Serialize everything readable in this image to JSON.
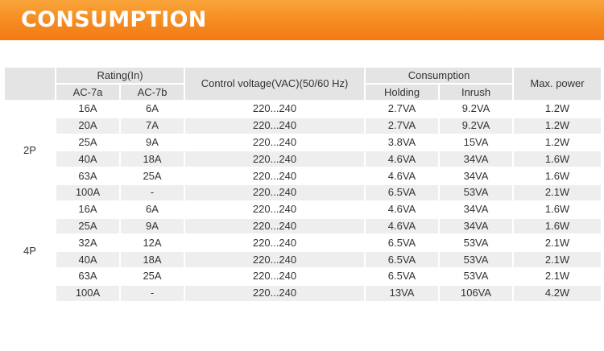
{
  "banner": {
    "title": "CONSUMPTION"
  },
  "headers": {
    "rating": "Rating(In)",
    "ac7a": "AC-7a",
    "ac7b": "AC-7b",
    "control_voltage": "Control voltage(VAC)(50/60 Hz)",
    "consumption": "Consumption",
    "holding": "Holding",
    "inrush": "Inrush",
    "max_power": "Max. power"
  },
  "groups": [
    {
      "label": "2P",
      "rows": [
        {
          "ac7a": "16A",
          "ac7b": "6A",
          "voltage": "220...240",
          "holding": "2.7VA",
          "inrush": "9.2VA",
          "max_power": "1.2W"
        },
        {
          "ac7a": "20A",
          "ac7b": "7A",
          "voltage": "220...240",
          "holding": "2.7VA",
          "inrush": "9.2VA",
          "max_power": "1.2W"
        },
        {
          "ac7a": "25A",
          "ac7b": "9A",
          "voltage": "220...240",
          "holding": "3.8VA",
          "inrush": "15VA",
          "max_power": "1.2W"
        },
        {
          "ac7a": "40A",
          "ac7b": "18A",
          "voltage": "220...240",
          "holding": "4.6VA",
          "inrush": "34VA",
          "max_power": "1.6W"
        },
        {
          "ac7a": "63A",
          "ac7b": "25A",
          "voltage": "220...240",
          "holding": "4.6VA",
          "inrush": "34VA",
          "max_power": "1.6W"
        },
        {
          "ac7a": "100A",
          "ac7b": "-",
          "voltage": "220...240",
          "holding": "6.5VA",
          "inrush": "53VA",
          "max_power": "2.1W"
        }
      ]
    },
    {
      "label": "4P",
      "rows": [
        {
          "ac7a": "16A",
          "ac7b": "6A",
          "voltage": "220...240",
          "holding": "4.6VA",
          "inrush": "34VA",
          "max_power": "1.6W"
        },
        {
          "ac7a": "25A",
          "ac7b": "9A",
          "voltage": "220...240",
          "holding": "4.6VA",
          "inrush": "34VA",
          "max_power": "1.6W"
        },
        {
          "ac7a": "32A",
          "ac7b": "12A",
          "voltage": "220...240",
          "holding": "6.5VA",
          "inrush": "53VA",
          "max_power": "2.1W"
        },
        {
          "ac7a": "40A",
          "ac7b": "18A",
          "voltage": "220...240",
          "holding": "6.5VA",
          "inrush": "53VA",
          "max_power": "2.1W"
        },
        {
          "ac7a": "63A",
          "ac7b": "25A",
          "voltage": "220...240",
          "holding": "6.5VA",
          "inrush": "53VA",
          "max_power": "2.1W"
        },
        {
          "ac7a": "100A",
          "ac7b": "-",
          "voltage": "220...240",
          "holding": "13VA",
          "inrush": "106VA",
          "max_power": "4.2W"
        }
      ]
    }
  ]
}
